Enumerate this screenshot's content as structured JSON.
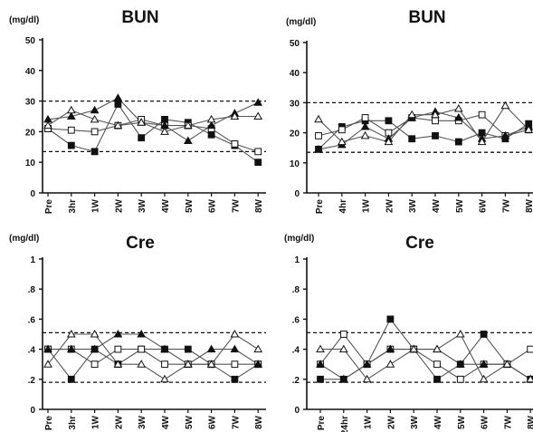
{
  "chart_data": [
    {
      "type": "line",
      "title": "BUN",
      "ylabel": "(mg/dl)",
      "ylim": [
        0,
        50
      ],
      "yticks": [
        "0",
        "10",
        "20",
        "30",
        "40",
        "50"
      ],
      "categories": [
        "Pre",
        "3hr",
        "1W",
        "2W",
        "3W",
        "4W",
        "5W",
        "6W",
        "7W",
        "8W"
      ],
      "reference_lines": [
        30,
        13.5
      ],
      "series": [
        {
          "marker": "filled-square",
          "values": [
            21,
            15.5,
            13.5,
            29,
            18,
            24,
            23,
            19,
            15.5,
            10
          ]
        },
        {
          "marker": "open-square",
          "values": [
            21,
            20.5,
            20,
            22,
            24,
            22,
            22,
            21,
            16,
            13.5
          ]
        },
        {
          "marker": "filled-triangle",
          "values": [
            24,
            25,
            27,
            31,
            23,
            22,
            17,
            22,
            26,
            29.5
          ]
        },
        {
          "marker": "open-triangle",
          "values": [
            22,
            27,
            24,
            22,
            23,
            20,
            22,
            24,
            25,
            25
          ]
        }
      ]
    },
    {
      "type": "line",
      "title": "BUN",
      "ylabel": "(mg/dl)",
      "ylim": [
        0,
        50
      ],
      "yticks": [
        "0",
        "10",
        "20",
        "30",
        "40",
        "50"
      ],
      "categories": [
        "Pre",
        "24hr",
        "1W",
        "2W",
        "3W",
        "4W",
        "5W",
        "6W",
        "7W",
        "8W"
      ],
      "reference_lines": [
        30,
        13.5
      ],
      "series": [
        {
          "marker": "filled-square",
          "values": [
            14.5,
            22,
            24,
            24,
            18,
            19,
            17,
            20,
            18,
            23
          ]
        },
        {
          "marker": "open-square",
          "values": [
            19,
            21,
            25,
            20,
            25,
            24,
            24,
            26,
            19,
            21
          ]
        },
        {
          "marker": "filled-triangle",
          "values": [
            14.5,
            16,
            22,
            18,
            25,
            27,
            25,
            18,
            19,
            22
          ]
        },
        {
          "marker": "open-triangle",
          "values": [
            24.5,
            17,
            19,
            17,
            26,
            26,
            28,
            17,
            29,
            21
          ]
        }
      ]
    },
    {
      "type": "line",
      "title": "Cre",
      "ylabel": "(mg/dl)",
      "ylim": [
        0,
        1
      ],
      "yticks": [
        "0",
        ".2",
        ".4",
        ".6",
        ".8",
        "1"
      ],
      "categories": [
        "Pre",
        "3hr",
        "1W",
        "2W",
        "3W",
        "4W",
        "5W",
        "6W",
        "7W",
        "8W"
      ],
      "reference_lines": [
        0.51,
        0.18
      ],
      "series": [
        {
          "marker": "filled-square",
          "values": [
            0.4,
            0.2,
            0.4,
            0.3,
            0.4,
            0.4,
            0.4,
            0.3,
            0.2,
            0.3
          ]
        },
        {
          "marker": "open-square",
          "values": [
            0.4,
            0.4,
            0.3,
            0.4,
            0.4,
            0.3,
            0.3,
            0.3,
            0.3,
            0.3
          ]
        },
        {
          "marker": "filled-triangle",
          "values": [
            0.4,
            0.4,
            0.4,
            0.5,
            0.5,
            0.4,
            0.3,
            0.4,
            0.4,
            0.3
          ]
        },
        {
          "marker": "open-triangle",
          "values": [
            0.3,
            0.5,
            0.5,
            0.3,
            0.3,
            0.2,
            0.3,
            0.3,
            0.5,
            0.4
          ]
        }
      ]
    },
    {
      "type": "line",
      "title": "Cre",
      "ylabel": "(mg/dl)",
      "ylim": [
        0,
        1
      ],
      "yticks": [
        "0",
        ".2",
        ".4",
        ".6",
        ".8",
        "1"
      ],
      "categories": [
        "Pre",
        "24hr",
        "1W",
        "2W",
        "3W",
        "4W",
        "5W",
        "6W",
        "7W",
        "8W"
      ],
      "reference_lines": [
        0.51,
        0.18
      ],
      "series": [
        {
          "marker": "filled-square",
          "values": [
            0.2,
            0.2,
            0.3,
            0.6,
            0.4,
            0.2,
            0.3,
            0.5,
            0.3,
            0.2
          ]
        },
        {
          "marker": "open-square",
          "values": [
            0.3,
            0.5,
            0.3,
            0.4,
            0.4,
            0.3,
            0.2,
            0.3,
            0.3,
            0.4
          ]
        },
        {
          "marker": "filled-triangle",
          "values": [
            0.3,
            0.2,
            0.3,
            0.4,
            0.4,
            0.4,
            0.3,
            0.3,
            0.3,
            0.2
          ]
        },
        {
          "marker": "open-triangle",
          "values": [
            0.4,
            0.4,
            0.2,
            0.3,
            0.4,
            0.4,
            0.5,
            0.2,
            0.3,
            0.2
          ]
        }
      ]
    }
  ]
}
